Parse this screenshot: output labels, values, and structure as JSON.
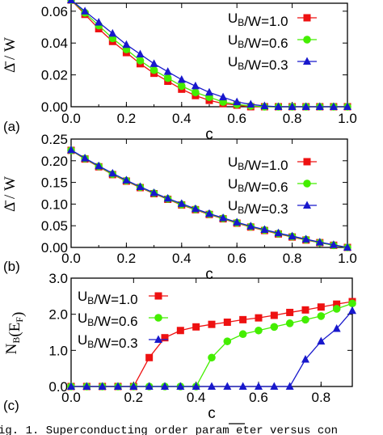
{
  "colors": {
    "red": "#ee1111",
    "green": "#44ee00",
    "blue": "#1818cc"
  },
  "caption": "ig. 1. Superconducting order param eter    versus con",
  "chart_data": [
    {
      "type": "line",
      "panel_label": "(a)",
      "xlabel": "c",
      "ylabel": "Δ̄ / W",
      "xlim": [
        0,
        1.0
      ],
      "ylim": [
        0,
        0.065
      ],
      "xticks": [
        "0.0",
        "0.2",
        "0.4",
        "0.6",
        "0.8",
        "1.0"
      ],
      "yticks": [
        "0.00",
        "0.02",
        "0.04",
        "0.06"
      ],
      "x": [
        0.0,
        0.05,
        0.1,
        0.15,
        0.2,
        0.25,
        0.3,
        0.35,
        0.4,
        0.45,
        0.5,
        0.55,
        0.6,
        0.65,
        0.7,
        0.75,
        0.8,
        0.85,
        0.9,
        0.95,
        1.0
      ],
      "series": [
        {
          "name": "U_B/W=1.0",
          "marker": "square",
          "color": "red",
          "values": [
            0.067,
            0.058,
            0.049,
            0.041,
            0.034,
            0.027,
            0.021,
            0.016,
            0.011,
            0.007,
            0.004,
            0.002,
            0.001,
            0.0,
            0.0,
            0.0,
            0.0,
            0.0,
            0.0,
            0.0,
            0.0
          ]
        },
        {
          "name": "U_B/W=0.6",
          "marker": "circle",
          "color": "green",
          "values": [
            0.067,
            0.059,
            0.051,
            0.043,
            0.036,
            0.029,
            0.023,
            0.018,
            0.013,
            0.009,
            0.006,
            0.003,
            0.0015,
            0.0005,
            0.0,
            0.0,
            0.0,
            0.0,
            0.0,
            0.0,
            0.0
          ]
        },
        {
          "name": "U_B/W=0.3",
          "marker": "triangle",
          "color": "blue",
          "values": [
            0.067,
            0.06,
            0.053,
            0.046,
            0.039,
            0.033,
            0.027,
            0.022,
            0.017,
            0.013,
            0.009,
            0.006,
            0.003,
            0.0015,
            0.0005,
            0.0,
            0.0,
            0.0,
            0.0,
            0.0,
            0.0
          ]
        }
      ]
    },
    {
      "type": "line",
      "panel_label": "(b)",
      "xlabel": "c",
      "ylabel": "Δ̄ / W",
      "xlim": [
        0,
        1.0
      ],
      "ylim": [
        0,
        0.25
      ],
      "xticks": [
        "0.0",
        "0.2",
        "0.4",
        "0.6",
        "0.8",
        "1.0"
      ],
      "yticks": [
        "0.00",
        "0.05",
        "0.10",
        "0.15",
        "0.20",
        "0.25"
      ],
      "x": [
        0.0,
        0.05,
        0.1,
        0.15,
        0.2,
        0.25,
        0.3,
        0.35,
        0.4,
        0.45,
        0.5,
        0.55,
        0.6,
        0.65,
        0.7,
        0.75,
        0.8,
        0.85,
        0.9,
        0.95,
        1.0
      ],
      "series": [
        {
          "name": "U_B/W=1.0",
          "marker": "square",
          "color": "red",
          "values": [
            0.224,
            0.204,
            0.186,
            0.168,
            0.153,
            0.138,
            0.124,
            0.111,
            0.098,
            0.087,
            0.076,
            0.066,
            0.056,
            0.047,
            0.039,
            0.031,
            0.024,
            0.017,
            0.011,
            0.005,
            0.0
          ]
        },
        {
          "name": "U_B/W=0.6",
          "marker": "circle",
          "color": "green",
          "values": [
            0.224,
            0.205,
            0.187,
            0.169,
            0.154,
            0.139,
            0.125,
            0.112,
            0.099,
            0.088,
            0.077,
            0.067,
            0.057,
            0.048,
            0.04,
            0.032,
            0.025,
            0.018,
            0.011,
            0.005,
            0.0
          ]
        },
        {
          "name": "U_B/W=0.3",
          "marker": "triangle",
          "color": "blue",
          "values": [
            0.225,
            0.206,
            0.188,
            0.171,
            0.155,
            0.14,
            0.126,
            0.113,
            0.101,
            0.089,
            0.078,
            0.068,
            0.058,
            0.049,
            0.041,
            0.033,
            0.026,
            0.019,
            0.012,
            0.006,
            0.0
          ]
        }
      ]
    },
    {
      "type": "line",
      "panel_label": "(c)",
      "xlabel": "c",
      "ylabel": "N_B(E_F)",
      "xlim": [
        0,
        0.9
      ],
      "ylim": [
        0,
        3.0
      ],
      "xticks": [
        "0.0",
        "0.2",
        "0.4",
        "0.6",
        "0.8"
      ],
      "yticks": [
        "0.0",
        "1.0",
        "2.0",
        "3.0"
      ],
      "x": [
        0.0,
        0.05,
        0.1,
        0.15,
        0.2,
        0.25,
        0.3,
        0.35,
        0.4,
        0.45,
        0.5,
        0.55,
        0.6,
        0.65,
        0.7,
        0.75,
        0.8,
        0.85,
        0.9
      ],
      "series": [
        {
          "name": "U_B/W=1.0",
          "marker": "square",
          "color": "red",
          "values": [
            0.0,
            0.0,
            0.0,
            0.0,
            0.0,
            0.8,
            1.35,
            1.55,
            1.65,
            1.72,
            1.78,
            1.85,
            1.9,
            1.97,
            2.05,
            2.12,
            2.2,
            2.28,
            2.35
          ]
        },
        {
          "name": "U_B/W=0.6",
          "marker": "circle",
          "color": "green",
          "values": [
            0.0,
            0.0,
            0.0,
            0.0,
            0.0,
            0.0,
            0.0,
            0.0,
            0.0,
            0.8,
            1.25,
            1.45,
            1.55,
            1.65,
            1.75,
            1.85,
            1.95,
            2.15,
            2.3
          ]
        },
        {
          "name": "U_B/W=0.3",
          "marker": "triangle",
          "color": "blue",
          "values": [
            0.0,
            0.0,
            0.0,
            0.0,
            0.0,
            0.0,
            0.0,
            0.0,
            0.0,
            0.0,
            0.0,
            0.0,
            0.0,
            0.0,
            0.0,
            0.75,
            1.25,
            1.6,
            2.1
          ]
        }
      ]
    }
  ]
}
